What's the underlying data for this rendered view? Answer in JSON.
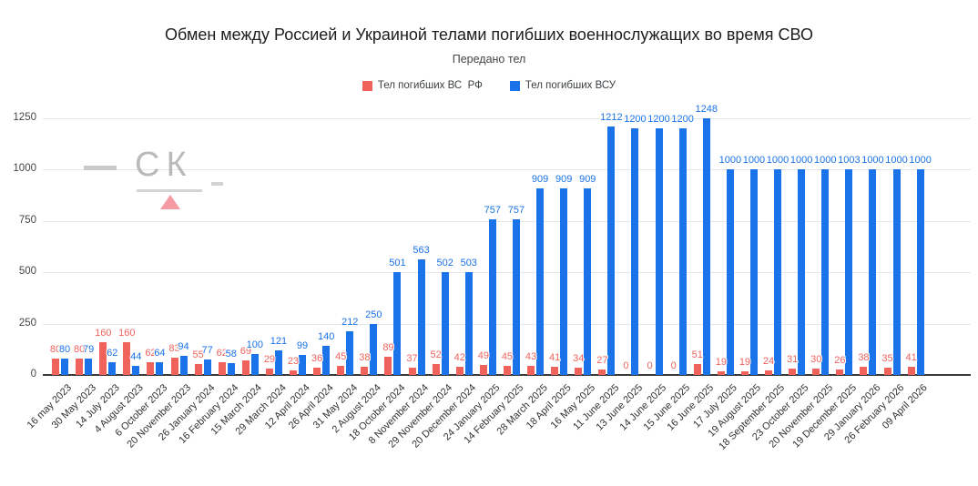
{
  "title": "Обмен между Россией и Украиной телами погибших военнослужащих во время СВО",
  "subtitle": "Передано тел",
  "legend": [
    {
      "label": "Тел погибших ВС  РФ",
      "color": "#f0625c"
    },
    {
      "label": "Тел погибших ВСУ",
      "color": "#1a73e8"
    }
  ],
  "watermark": {
    "logo": "СК"
  },
  "chart_data": {
    "type": "bar",
    "title": "Обмен между Россией и Украиной телами погибших военнослужащих во время СВО",
    "subtitle": "Передано тел",
    "categories": [
      "16 may 2023",
      "30 May 2023",
      "14 July 2023",
      "4 August 2023",
      "6 October 2023",
      "20 November 2023",
      "26 January 2024",
      "16 February 2024",
      "15 March 2024",
      "29 March 2024",
      "12 April 2024",
      "26 April 2024",
      "31 May 2024",
      "2 August 2024",
      "18 October 2024",
      "8 November 2024",
      "29 November 2024",
      "20 December 2024",
      "24 January 2025",
      "14 February 2025",
      "28 March 2025",
      "18 April 2025",
      "16 May 2025",
      "11 June 2025",
      "13 June 2025",
      "14 June 2025",
      "15 June 2025",
      "16 June 2025",
      "17 July 2025",
      "19 August 2025",
      "18 September 2025",
      "23 October 2025",
      "20 November 2025",
      "19 December 2025",
      "29 January 2026",
      "26 February 2026",
      "09 April 2026"
    ],
    "series": [
      {
        "name": "Тел погибших ВС  РФ",
        "color": "#f0625c",
        "values": [
          80,
          80,
          160,
          160,
          62,
          83,
          55,
          62,
          69,
          29,
          23,
          36,
          45,
          38,
          89,
          37,
          52,
          42,
          49,
          45,
          43,
          41,
          34,
          27,
          0,
          0,
          0,
          51,
          19,
          19,
          24,
          31,
          30,
          26,
          38,
          35,
          41
        ]
      },
      {
        "name": "Тел погибших ВСУ",
        "color": "#1a73e8",
        "values": [
          80,
          79,
          62,
          44,
          64,
          94,
          77,
          58,
          100,
          121,
          99,
          140,
          212,
          250,
          501,
          563,
          502,
          503,
          757,
          757,
          909,
          909,
          909,
          1212,
          1200,
          1200,
          1200,
          1248,
          1000,
          1000,
          1000,
          1000,
          1000,
          1003,
          1000,
          1000,
          1000
        ]
      }
    ],
    "ylim": [
      0,
      1250
    ],
    "yticks": [
      0,
      250,
      500,
      750,
      1000,
      1250
    ],
    "grid": true,
    "legend_position": "top",
    "value_labels": true,
    "xlabel": "",
    "ylabel": ""
  }
}
